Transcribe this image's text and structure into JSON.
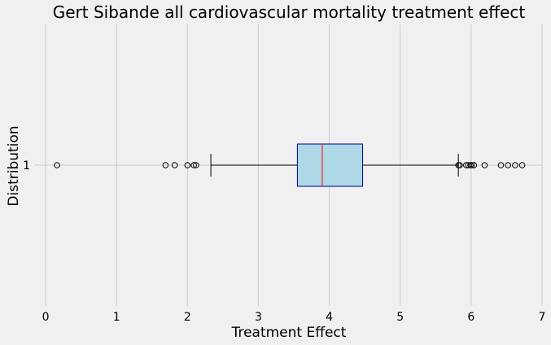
{
  "chart_data": {
    "type": "boxplot",
    "orientation": "horizontal",
    "title": "Gert Sibande all cardiovascular mortality treatment effect",
    "xlabel": "Treatment Effect",
    "ylabel": "Distribution",
    "xlim": [
      -0.15,
      7.0
    ],
    "x_ticks": [
      0,
      1,
      2,
      3,
      4,
      5,
      6,
      7
    ],
    "y_ticks": [
      "1"
    ],
    "grid": true,
    "box": {
      "label": "1",
      "whisker_low": 2.33,
      "q1": 3.55,
      "median": 3.9,
      "q3": 4.47,
      "whisker_high": 5.82,
      "outliers": [
        0.16,
        1.69,
        1.82,
        2.0,
        2.09,
        2.12,
        5.82,
        5.84,
        5.93,
        5.96,
        5.99,
        6.01,
        6.04,
        6.19,
        6.42,
        6.52,
        6.62,
        6.72
      ]
    },
    "colors": {
      "box_fill": "#add8e6",
      "box_edge": "#00008b",
      "median": "#ff0000",
      "whisker": "#000000",
      "background": "#f0f0f0",
      "grid": "#cbcbcb"
    }
  }
}
